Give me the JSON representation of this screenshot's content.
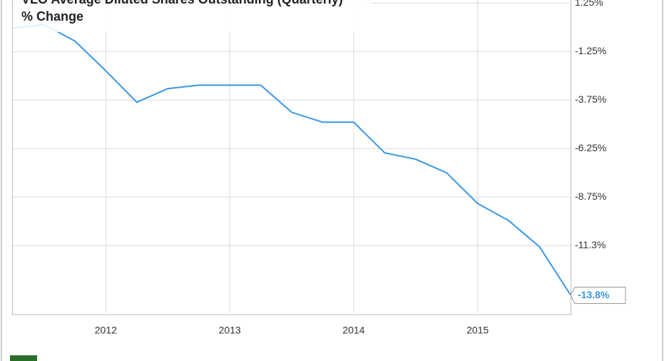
{
  "chart_data": {
    "type": "line",
    "title": "VLO Average Diluted Shares Outstanding (Quarterly) % Change",
    "categories": [
      null,
      null,
      null,
      "2012",
      null,
      null,
      null,
      "2013",
      null,
      null,
      null,
      "2014",
      null,
      null,
      null,
      "2015",
      null,
      null,
      null
    ],
    "series": [
      {
        "name": "VLO Average Diluted Shares Outstanding (Quarterly) % Change",
        "color": "#3a97e6",
        "values": [
          -0.04,
          0.15,
          -0.7,
          -2.24,
          -3.86,
          -3.16,
          -2.98,
          -2.98,
          -2.98,
          -4.38,
          -4.89,
          -4.89,
          -6.47,
          -6.8,
          -7.5,
          -9.08,
          -9.96,
          -11.32,
          -13.8
        ],
        "value_labels": [
          null,
          null,
          null,
          null,
          null,
          null,
          null,
          null,
          null,
          null,
          null,
          null,
          null,
          null,
          null,
          null,
          null,
          null,
          "-13.8%"
        ]
      }
    ],
    "ylim": [
      1.41,
      -14.7
    ],
    "yticks": [
      {
        "value": 1.25,
        "label": "1.25%"
      },
      {
        "value": -1.25,
        "label": "-1.25%"
      },
      {
        "value": -3.75,
        "label": "-3.75%"
      },
      {
        "value": -6.25,
        "label": "-6.25%"
      },
      {
        "value": -8.75,
        "label": "-8.75%"
      },
      {
        "value": -11.25,
        "label": "-11.3%"
      }
    ],
    "grid": true
  }
}
